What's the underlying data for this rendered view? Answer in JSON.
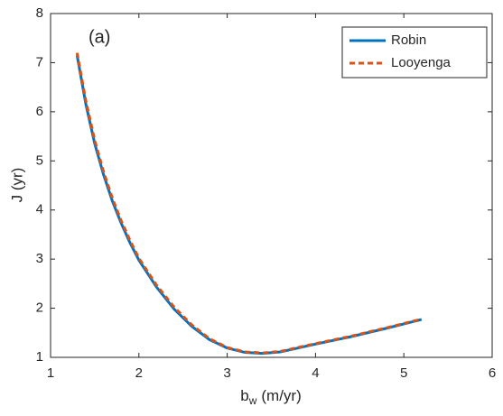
{
  "chart_data": {
    "type": "line",
    "annotation": "(a)",
    "xlabel": "b",
    "xlabel_subscript": "w",
    "xlabel_unit": "(m/yr)",
    "ylabel": "J (yr)",
    "x": [
      1.3,
      1.4,
      1.5,
      1.6,
      1.7,
      1.8,
      1.9,
      2.0,
      2.2,
      2.4,
      2.6,
      2.8,
      3.0,
      3.2,
      3.4,
      3.6,
      3.8,
      4.0,
      4.4,
      4.8,
      5.2
    ],
    "series": [
      {
        "name": "Robin",
        "color": "#0072bd",
        "dash": false,
        "values": [
          7.15,
          6.15,
          5.35,
          4.72,
          4.18,
          3.73,
          3.33,
          2.98,
          2.43,
          1.98,
          1.63,
          1.36,
          1.19,
          1.1,
          1.08,
          1.11,
          1.19,
          1.27,
          1.42,
          1.59,
          1.77
        ]
      },
      {
        "name": "Looyenga",
        "color": "#d95319",
        "dash": true,
        "values": [
          7.2,
          6.22,
          5.42,
          4.78,
          4.24,
          3.78,
          3.38,
          3.02,
          2.47,
          2.02,
          1.66,
          1.38,
          1.2,
          1.11,
          1.09,
          1.12,
          1.2,
          1.28,
          1.43,
          1.6,
          1.78
        ]
      }
    ],
    "xlim": [
      1,
      6
    ],
    "xticks": [
      1,
      2,
      3,
      4,
      5,
      6
    ],
    "ylim": [
      1,
      8
    ],
    "yticks": [
      1,
      2,
      3,
      4,
      5,
      6,
      7,
      8
    ],
    "legend": "top-right",
    "grid": false
  }
}
